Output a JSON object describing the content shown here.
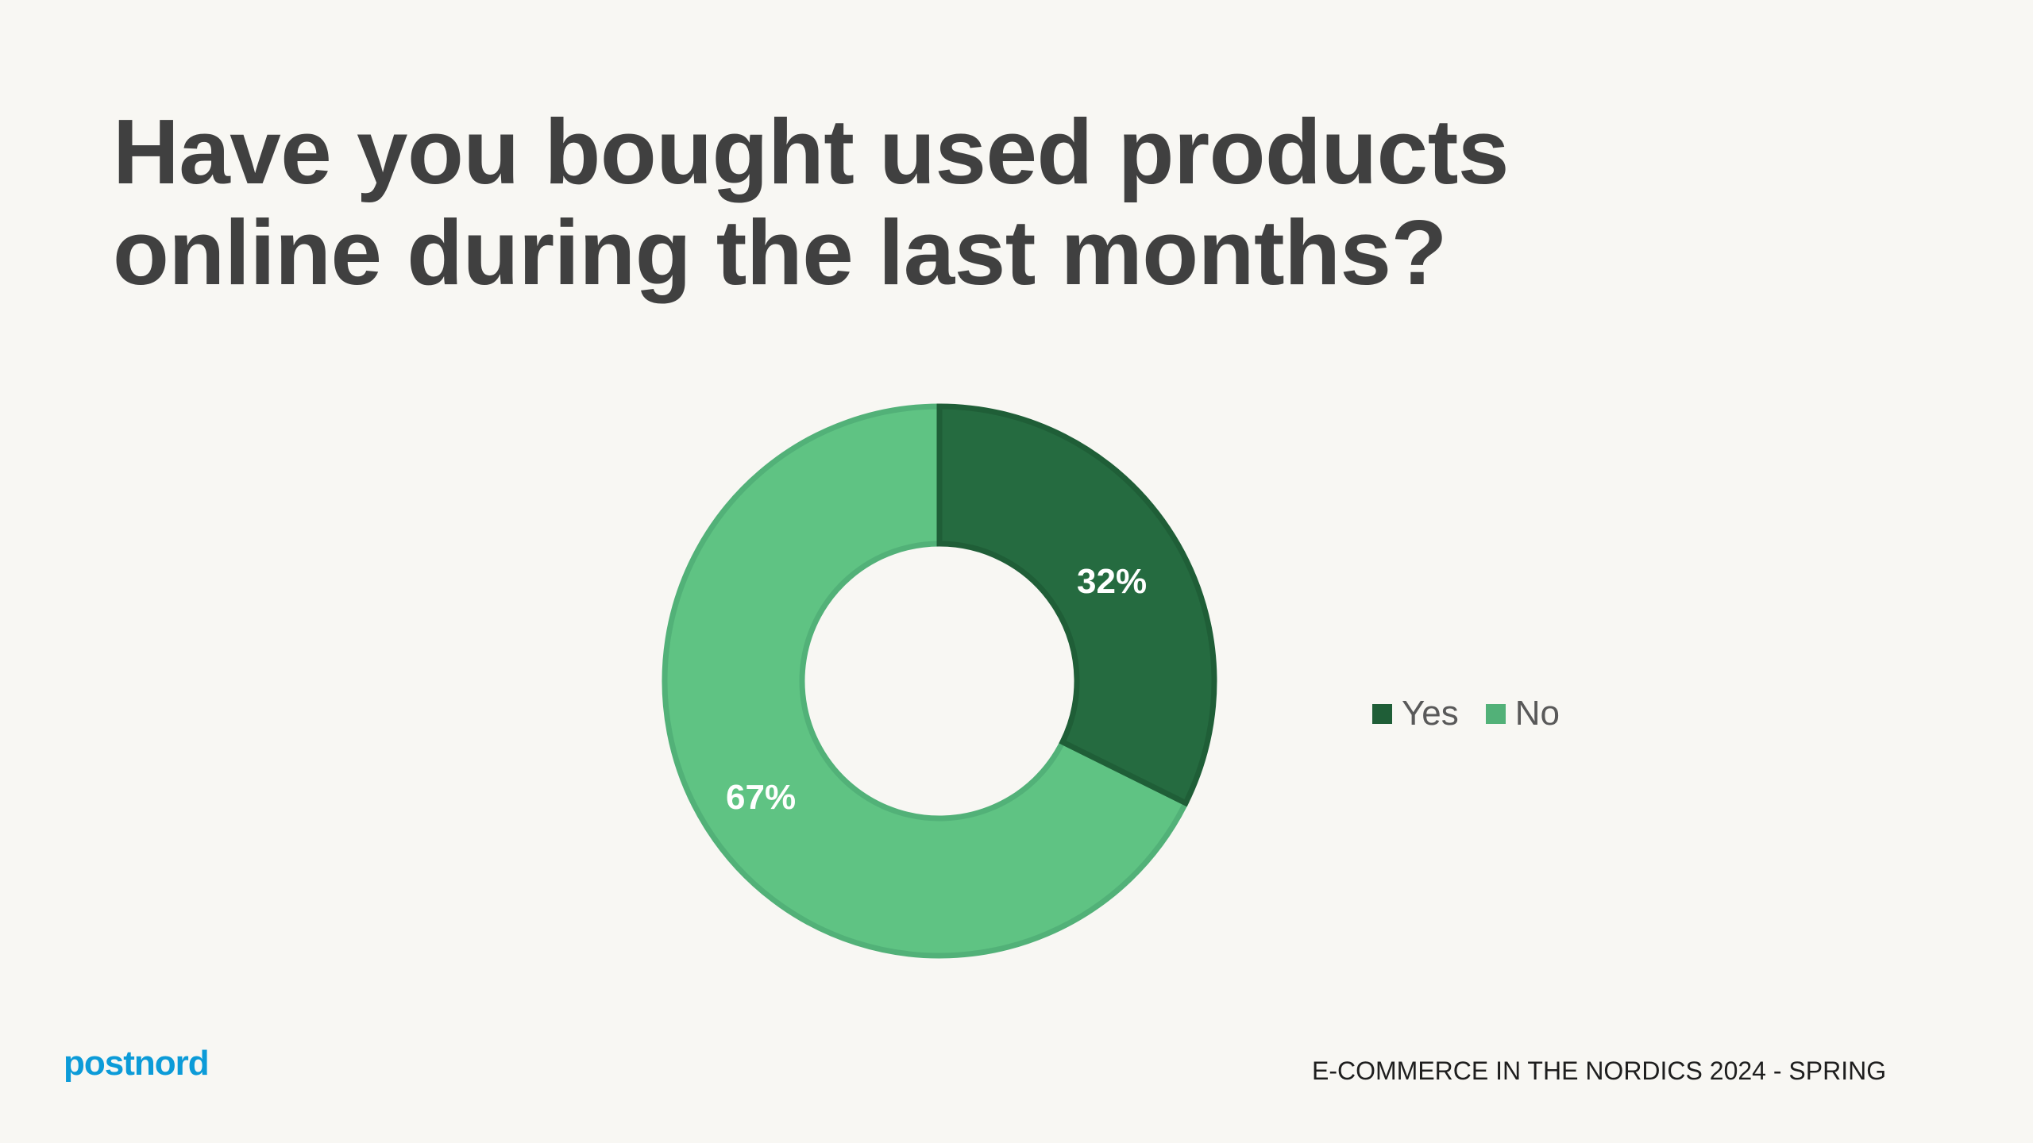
{
  "title": {
    "line1": "Have you bought used products",
    "line2": "online during the last months?"
  },
  "chart_data": {
    "type": "pie",
    "variant": "donut",
    "title": "Have you bought used products online during the last months?",
    "categories": [
      "Yes",
      "No"
    ],
    "values": [
      32,
      67
    ],
    "labels": [
      "32%",
      "67%"
    ],
    "colors": [
      "#256B40",
      "#5FC383"
    ],
    "legend_position": "right"
  },
  "legend": {
    "items": [
      {
        "label": "Yes",
        "color": "#256B40"
      },
      {
        "label": "No",
        "color": "#52B178"
      }
    ]
  },
  "footer": {
    "logo": "postnord",
    "report": "E-COMMERCE IN THE NORDICS 2024 - SPRING"
  }
}
